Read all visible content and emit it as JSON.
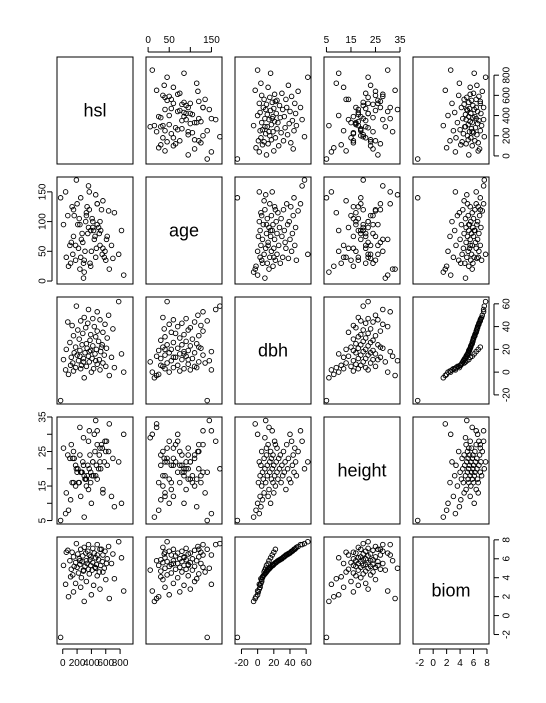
{
  "chart_data": {
    "type": "scatter-matrix",
    "variables": [
      {
        "name": "hsl",
        "range": [
          -80,
          980
        ],
        "ticks": [
          0,
          200,
          400,
          600,
          800
        ],
        "tick_labels": [
          "0",
          "200",
          "400",
          "600",
          "800"
        ],
        "hi_ticks": [
          0,
          200,
          400,
          600,
          800
        ],
        "hi_labels": [
          "0",
          "200",
          "400",
          "600",
          "800"
        ]
      },
      {
        "name": "age",
        "range": [
          -5,
          175
        ],
        "ticks": [
          0,
          50,
          100,
          150
        ],
        "tick_labels": [
          "0",
          "50",
          "100",
          "150"
        ],
        "hi_ticks": [
          0,
          50,
          100,
          150
        ],
        "hi_labels": [
          "0",
          "50",
          "",
          "150"
        ]
      },
      {
        "name": "dbh",
        "range": [
          -28,
          66
        ],
        "ticks": [
          -20,
          0,
          20,
          40,
          60
        ],
        "tick_labels": [
          "-20",
          "0",
          "20",
          "40",
          "60"
        ],
        "hi_ticks": [
          -20,
          0,
          20,
          40,
          60
        ],
        "hi_labels": [
          "-20",
          "0",
          "20",
          "40",
          "60"
        ]
      },
      {
        "name": "height",
        "range": [
          4,
          35
        ],
        "ticks": [
          5,
          10,
          15,
          20,
          25,
          30,
          35
        ],
        "tick_labels": [
          "5",
          "",
          "15",
          "",
          "25",
          "",
          "35"
        ],
        "hi_ticks": [
          5,
          15,
          25,
          35
        ],
        "hi_labels": [
          "5",
          "15",
          "25",
          "35"
        ]
      },
      {
        "name": "biom",
        "range": [
          -3,
          8.3
        ],
        "ticks": [
          -2,
          0,
          2,
          4,
          6,
          8
        ],
        "tick_labels": [
          "-2",
          "0",
          "2",
          "4",
          "6",
          "8"
        ],
        "hi_ticks": [
          -2,
          0,
          2,
          4,
          6,
          8
        ],
        "hi_labels": [
          "-2",
          "0",
          "2",
          "4",
          "6",
          "8"
        ]
      }
    ],
    "observations": [
      [
        780,
        45,
        62,
        22,
        7.8
      ],
      [
        190,
        170,
        58,
        20,
        7.6
      ],
      [
        360,
        160,
        55,
        28,
        7.5
      ],
      [
        480,
        130,
        53,
        31,
        7.5
      ],
      [
        640,
        118,
        50,
        25,
        7.3
      ],
      [
        300,
        35,
        48,
        18,
        7.2
      ],
      [
        420,
        90,
        47,
        22,
        7.1
      ],
      [
        520,
        60,
        46,
        26,
        7.0
      ],
      [
        250,
        140,
        45,
        19,
        7.0
      ],
      [
        70,
        110,
        44,
        24,
        6.9
      ],
      [
        350,
        80,
        43,
        21,
        6.8
      ],
      [
        590,
        50,
        42,
        28,
        6.8
      ],
      [
        130,
        125,
        41,
        16,
        6.7
      ],
      [
        440,
        70,
        40,
        30,
        6.6
      ],
      [
        320,
        100,
        39,
        17,
        6.6
      ],
      [
        700,
        38,
        38,
        23,
        6.5
      ],
      [
        210,
        95,
        37,
        20,
        6.5
      ],
      [
        480,
        130,
        36,
        27,
        6.4
      ],
      [
        560,
        55,
        35,
        14,
        6.4
      ],
      [
        280,
        65,
        34,
        22,
        6.3
      ],
      [
        390,
        85,
        33,
        19,
        6.2
      ],
      [
        150,
        120,
        32,
        25,
        6.2
      ],
      [
        460,
        40,
        31,
        18,
        6.1
      ],
      [
        620,
        75,
        30,
        21,
        6.0
      ],
      [
        230,
        105,
        29,
        16,
        6.0
      ],
      [
        380,
        30,
        28,
        24,
        5.9
      ],
      [
        500,
        90,
        27,
        20,
        5.9
      ],
      [
        100,
        60,
        26,
        23,
        5.8
      ],
      [
        330,
        115,
        25,
        17,
        5.8
      ],
      [
        550,
        45,
        24,
        26,
        5.7
      ],
      [
        270,
        80,
        24,
        19,
        5.7
      ],
      [
        420,
        100,
        23,
        22,
        5.6
      ],
      [
        180,
        35,
        22,
        15,
        5.6
      ],
      [
        610,
        70,
        21,
        28,
        5.5
      ],
      [
        340,
        125,
        21,
        18,
        5.5
      ],
      [
        470,
        55,
        20,
        21,
        5.4
      ],
      [
        240,
        95,
        19,
        24,
        5.4
      ],
      [
        390,
        25,
        19,
        16,
        5.3
      ],
      [
        530,
        85,
        18,
        20,
        5.3
      ],
      [
        160,
        110,
        17,
        23,
        5.2
      ],
      [
        310,
        50,
        17,
        17,
        5.2
      ],
      [
        450,
        75,
        16,
        25,
        5.1
      ],
      [
        200,
        130,
        15,
        19,
        5.1
      ],
      [
        580,
        40,
        15,
        22,
        5.0
      ],
      [
        360,
        90,
        14,
        14,
        4.9
      ],
      [
        120,
        65,
        13,
        27,
        4.9
      ],
      [
        410,
        105,
        12,
        18,
        4.8
      ],
      [
        290,
        30,
        12,
        21,
        4.7
      ],
      [
        510,
        80,
        11,
        24,
        4.6
      ],
      [
        220,
        55,
        10,
        16,
        4.5
      ],
      [
        370,
        120,
        9,
        20,
        4.4
      ],
      [
        140,
        45,
        8,
        23,
        4.3
      ],
      [
        480,
        95,
        7,
        17,
        4.2
      ],
      [
        260,
        70,
        6,
        19,
        4.0
      ],
      [
        600,
        35,
        5,
        25,
        3.8
      ],
      [
        330,
        110,
        5,
        15,
        3.6
      ],
      [
        180,
        60,
        4,
        21,
        3.4
      ],
      [
        430,
        85,
        3,
        18,
        3.2
      ],
      [
        250,
        40,
        3,
        12,
        3.0
      ],
      [
        520,
        100,
        2,
        22,
        2.8
      ],
      [
        150,
        75,
        1,
        16,
        2.5
      ],
      [
        400,
        50,
        0,
        10,
        2.2
      ],
      [
        80,
        25,
        -2,
        8,
        2.0
      ],
      [
        300,
        15,
        -5,
        6,
        1.5
      ],
      [
        -30,
        140,
        -25,
        5,
        -2.3
      ],
      [
        650,
        20,
        -3,
        33,
        1.8
      ],
      [
        850,
        10,
        0,
        30,
        2.6
      ],
      [
        40,
        150,
        2,
        7,
        3.3
      ],
      [
        720,
        115,
        4,
        9,
        3.9
      ],
      [
        110,
        30,
        6,
        11,
        4.1
      ],
      [
        560,
        135,
        8,
        13,
        4.6
      ],
      [
        290,
        5,
        9,
        29,
        4.8
      ],
      [
        460,
        145,
        10,
        34,
        5.0
      ],
      [
        10,
        95,
        11,
        26,
        5.3
      ],
      [
        680,
        60,
        13,
        12,
        5.5
      ],
      [
        240,
        20,
        14,
        32,
        5.8
      ],
      [
        820,
        85,
        16,
        10,
        6.1
      ],
      [
        370,
        150,
        18,
        31,
        6.4
      ],
      [
        50,
        40,
        20,
        13,
        6.7
      ],
      [
        540,
        120,
        22,
        27,
        7.0
      ]
    ]
  }
}
